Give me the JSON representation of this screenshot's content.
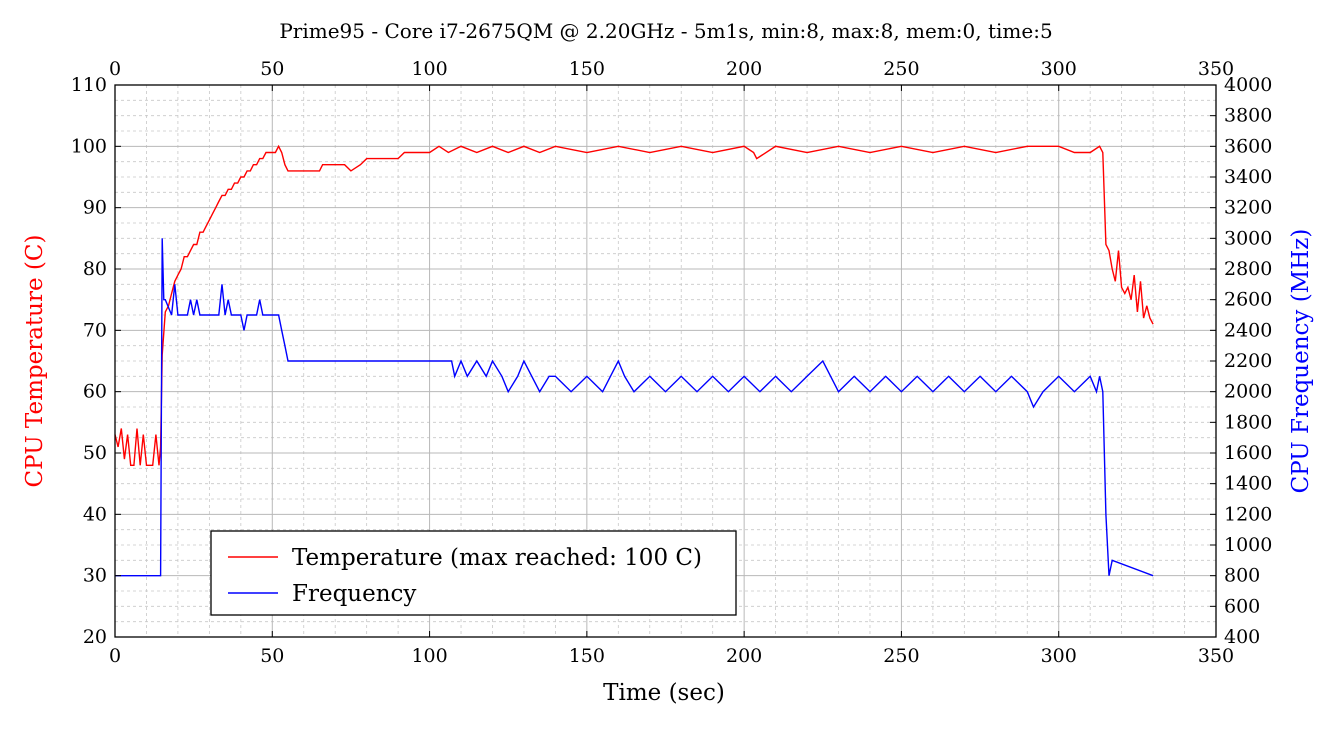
{
  "chart_data": {
    "type": "line",
    "title": "Prime95 - Core i7-2675QM @ 2.20GHz - 5m1s, min:8, max:8, mem:0, time:5",
    "xlabel": "Time (sec)",
    "ylabel_left": "CPU Temperature (C)",
    "ylabel_right": "CPU Frequency (MHz)",
    "xlim": [
      0,
      350
    ],
    "ylim_left": [
      20,
      110
    ],
    "ylim_right": [
      400,
      4000
    ],
    "x_ticks": [
      0,
      50,
      100,
      150,
      200,
      250,
      300,
      350
    ],
    "y_left_ticks": [
      20,
      30,
      40,
      50,
      60,
      70,
      80,
      90,
      100,
      110
    ],
    "y_right_ticks": [
      400,
      600,
      800,
      1000,
      1200,
      1400,
      1600,
      1800,
      2000,
      2200,
      2400,
      2600,
      2800,
      3000,
      3200,
      3400,
      3600,
      3800,
      4000
    ],
    "grid": true,
    "legend_position": "bottom-left",
    "colors": {
      "temperature": "#ff0000",
      "frequency": "#0000ff"
    },
    "series": [
      {
        "name": "Temperature (max reached: 100 C)",
        "axis": "left",
        "x": [
          0,
          1,
          2,
          3,
          4,
          5,
          6,
          7,
          8,
          9,
          10,
          11,
          12,
          13,
          14,
          14.5,
          15,
          16,
          17,
          18,
          19,
          20,
          21,
          22,
          23,
          24,
          25,
          26,
          27,
          28,
          29,
          30,
          31,
          32,
          33,
          34,
          35,
          36,
          37,
          38,
          39,
          40,
          41,
          42,
          43,
          44,
          45,
          46,
          47,
          48,
          49,
          50,
          51,
          52,
          53,
          54,
          55,
          58,
          62,
          65,
          66,
          70,
          73,
          75,
          78,
          80,
          82,
          85,
          88,
          90,
          92,
          95,
          97,
          100,
          103,
          106,
          110,
          115,
          120,
          125,
          130,
          135,
          140,
          150,
          160,
          170,
          180,
          190,
          200,
          203,
          204,
          210,
          220,
          230,
          240,
          250,
          260,
          270,
          280,
          290,
          300,
          305,
          310,
          313,
          314,
          315,
          316,
          317,
          318,
          319,
          320,
          321,
          322,
          323,
          324,
          325,
          326,
          327,
          328,
          329,
          330
        ],
        "values": [
          53,
          51,
          54,
          49,
          53,
          48,
          48,
          54,
          48,
          53,
          48,
          48,
          48,
          53,
          48,
          51,
          66,
          73,
          74,
          76,
          78,
          79,
          80,
          82,
          82,
          83,
          84,
          84,
          86,
          86,
          87,
          88,
          89,
          90,
          91,
          92,
          92,
          93,
          93,
          94,
          94,
          95,
          95,
          96,
          96,
          97,
          97,
          98,
          98,
          99,
          99,
          99,
          99,
          100,
          99,
          97,
          96,
          96,
          96,
          96,
          97,
          97,
          97,
          96,
          97,
          98,
          98,
          98,
          98,
          98,
          99,
          99,
          99,
          99,
          100,
          99,
          100,
          99,
          100,
          99,
          100,
          99,
          100,
          99,
          100,
          99,
          100,
          99,
          100,
          99,
          98,
          100,
          99,
          100,
          99,
          100,
          99,
          100,
          99,
          100,
          100,
          99,
          99,
          100,
          99,
          84,
          83,
          80,
          78,
          83,
          77,
          76,
          77,
          75,
          79,
          73,
          78,
          72,
          74,
          72,
          71
        ]
      },
      {
        "name": "Frequency",
        "axis": "right",
        "x": [
          0,
          14,
          14.5,
          15,
          15.5,
          16,
          18,
          19,
          20,
          21,
          23,
          24,
          25,
          26,
          27,
          33,
          34,
          35,
          36,
          37,
          38,
          40,
          41,
          42,
          45,
          46,
          47,
          48,
          52,
          53,
          54,
          55,
          60,
          70,
          80,
          90,
          100,
          107,
          108,
          110,
          112,
          115,
          118,
          120,
          123,
          125,
          128,
          130,
          135,
          138,
          140,
          145,
          150,
          155,
          160,
          162,
          165,
          170,
          175,
          180,
          185,
          190,
          195,
          200,
          205,
          210,
          215,
          220,
          225,
          230,
          235,
          240,
          245,
          250,
          255,
          260,
          265,
          270,
          275,
          280,
          285,
          290,
          292,
          295,
          300,
          305,
          310,
          312,
          313,
          314,
          315,
          316,
          317,
          330
        ],
        "values": [
          800,
          800,
          800,
          3000,
          2600,
          2600,
          2500,
          2700,
          2500,
          2500,
          2500,
          2600,
          2500,
          2600,
          2500,
          2500,
          2700,
          2500,
          2600,
          2500,
          2500,
          2500,
          2400,
          2500,
          2500,
          2600,
          2500,
          2500,
          2500,
          2400,
          2300,
          2200,
          2200,
          2200,
          2200,
          2200,
          2200,
          2200,
          2100,
          2200,
          2100,
          2200,
          2100,
          2200,
          2100,
          2000,
          2100,
          2200,
          2000,
          2100,
          2100,
          2000,
          2100,
          2000,
          2200,
          2100,
          2000,
          2100,
          2000,
          2100,
          2000,
          2100,
          2000,
          2100,
          2000,
          2100,
          2000,
          2100,
          2200,
          2000,
          2100,
          2000,
          2100,
          2000,
          2100,
          2000,
          2100,
          2000,
          2100,
          2000,
          2100,
          2000,
          1900,
          2000,
          2100,
          2000,
          2100,
          2000,
          2100,
          2000,
          1200,
          800,
          900,
          800
        ]
      }
    ]
  }
}
